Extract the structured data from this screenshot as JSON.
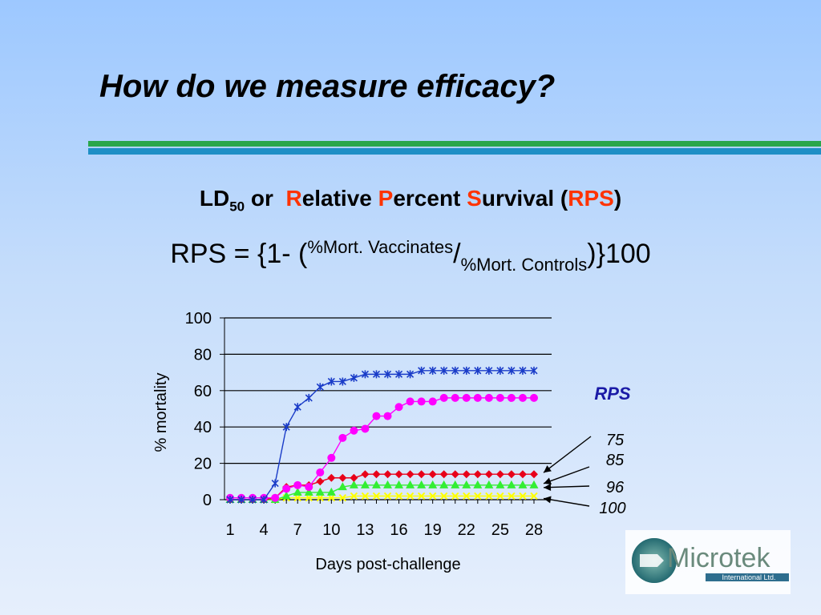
{
  "slide": {
    "title": "How do we measure efficacy?",
    "subtitle": {
      "ld": "LD",
      "ld_sub": "50",
      "or": "or",
      "r": "R",
      "elative": "elative ",
      "p": "P",
      "ercent": "ercent ",
      "s": "S",
      "urvival": "urvival (",
      "rps": "RPS",
      "close": ")"
    },
    "formula": {
      "prefix": "RPS = {1- (",
      "numerator": "%Mort. Vaccinates",
      "slash": "/",
      "denominator": "%Mort. Controls",
      "suffix": ")}100"
    }
  },
  "colors": {
    "red": "#ff3300",
    "series_blue": "#1a3cc8",
    "series_magenta": "#ff00ff",
    "series_red": "#e8001a",
    "series_green": "#33ee33",
    "series_yellow": "#ffff00",
    "rps_label": "#1a1aa6"
  },
  "logo": {
    "name": "Microtek",
    "sub": "International Ltd."
  },
  "chart_data": {
    "type": "line",
    "title": "",
    "xlabel": "Days post-challenge",
    "ylabel": "% mortality",
    "xlim": [
      1,
      28
    ],
    "ylim": [
      0,
      100
    ],
    "y_ticks": [
      "0",
      "20",
      "40",
      "60",
      "80",
      "100"
    ],
    "x_ticks": [
      "1",
      "4",
      "7",
      "10",
      "13",
      "16",
      "19",
      "22",
      "25",
      "28"
    ],
    "x": [
      1,
      2,
      3,
      4,
      5,
      6,
      7,
      8,
      9,
      10,
      11,
      12,
      13,
      14,
      15,
      16,
      17,
      18,
      19,
      20,
      21,
      22,
      23,
      24,
      25,
      26,
      27,
      28
    ],
    "series": [
      {
        "marker": "star",
        "color": "#1a3cc8",
        "values": [
          0,
          0,
          0,
          0,
          9,
          40,
          51,
          56,
          62,
          65,
          65,
          67,
          69,
          69,
          69,
          69,
          69,
          71,
          71,
          71,
          71,
          71,
          71,
          71,
          71,
          71,
          71,
          71
        ]
      },
      {
        "marker": "circle",
        "color": "#ff00ff",
        "values": [
          1,
          1,
          1,
          1,
          1,
          6,
          8,
          7,
          15,
          23,
          34,
          38,
          39,
          46,
          46,
          51,
          54,
          54,
          54,
          56,
          56,
          56,
          56,
          56,
          56,
          56,
          56,
          56
        ]
      },
      {
        "marker": "diamond",
        "color": "#e8001a",
        "values": [
          0,
          0,
          0,
          0,
          1,
          7,
          8,
          8,
          10,
          12,
          12,
          12,
          14,
          14,
          14,
          14,
          14,
          14,
          14,
          14,
          14,
          14,
          14,
          14,
          14,
          14,
          14,
          14
        ]
      },
      {
        "marker": "triangle",
        "color": "#33ee33",
        "values": [
          0,
          0,
          0,
          0,
          0,
          2,
          4,
          4,
          4,
          4,
          7,
          8,
          8,
          8,
          8,
          8,
          8,
          8,
          8,
          8,
          8,
          8,
          8,
          8,
          8,
          8,
          8,
          8
        ]
      },
      {
        "marker": "x",
        "color": "#ffff00",
        "values": [
          0,
          0,
          0,
          0,
          0,
          1,
          1,
          1,
          1,
          1,
          1,
          2,
          2,
          2,
          2,
          2,
          2,
          2,
          2,
          2,
          2,
          2,
          2,
          2,
          2,
          2,
          2,
          2
        ]
      }
    ],
    "rps_header": "RPS",
    "rps_values": [
      "75",
      "85",
      "96",
      "100"
    ]
  }
}
